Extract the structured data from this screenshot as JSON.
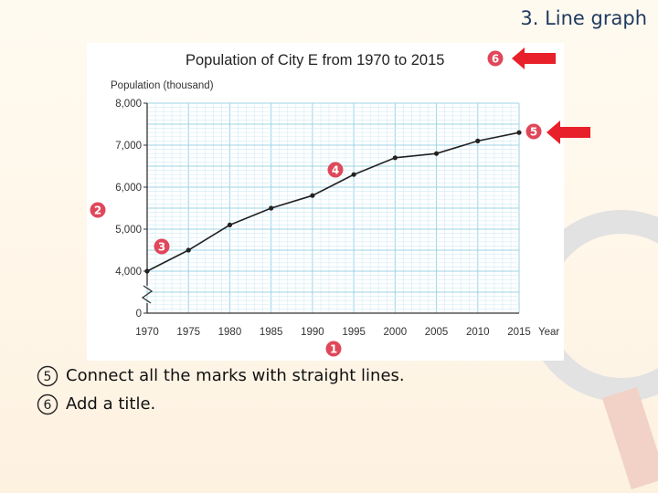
{
  "slide": {
    "title": "3. Line graph"
  },
  "chart_data": {
    "type": "line",
    "title": "Population of City E from 1970 to 2015",
    "ylabel": "Population (thousand)",
    "xlabel": "Year",
    "x": [
      1970,
      1975,
      1980,
      1985,
      1990,
      1995,
      2000,
      2005,
      2010,
      2015
    ],
    "series": [
      {
        "values": [
          4000,
          4500,
          5100,
          5500,
          5800,
          6300,
          6700,
          6800,
          7100,
          7300
        ]
      }
    ],
    "yticks": [
      "0",
      "4,000",
      "5,000",
      "6,000",
      "7,000",
      "8,000"
    ],
    "xticks": [
      "1970",
      "1975",
      "1980",
      "1985",
      "1990",
      "1995",
      "2000",
      "2005",
      "2010",
      "2015"
    ],
    "ylim": [
      4000,
      8000
    ],
    "axis_break": true,
    "grid": true,
    "line_color": "#222222",
    "grid_color": "#9fd3e6",
    "grid_minor_color": "#d6eef6",
    "marker_color": "#e0475a",
    "markers": [
      {
        "label": "1",
        "target": "x-axis"
      },
      {
        "label": "2",
        "target": "y-axis"
      },
      {
        "label": "3",
        "target": "points"
      },
      {
        "label": "4",
        "target": "line"
      },
      {
        "label": "5",
        "target": "last-point"
      },
      {
        "label": "6",
        "target": "title"
      }
    ]
  },
  "instructions": [
    {
      "num": "⑤",
      "text": "Connect all the marks with straight lines."
    },
    {
      "num": "⑥",
      "text": "Add a title."
    }
  ],
  "colors": {
    "arrow": "#e8202a",
    "title_text": "#1f3a5f"
  }
}
